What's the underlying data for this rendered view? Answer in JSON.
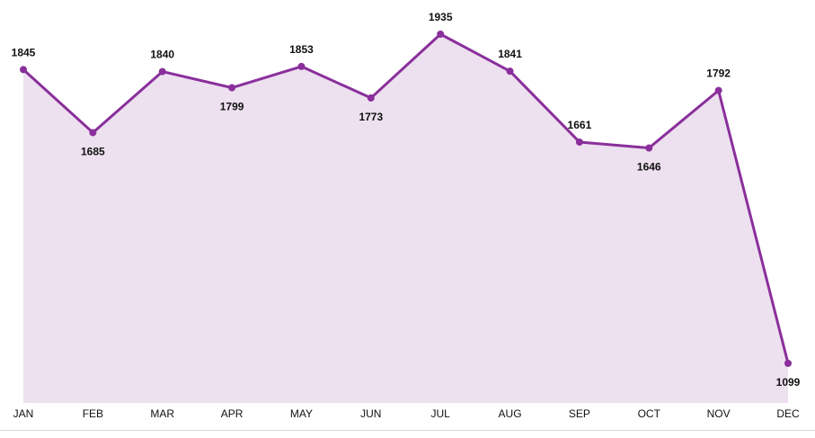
{
  "chart_data": {
    "type": "area",
    "categories": [
      "JAN",
      "FEB",
      "MAR",
      "APR",
      "MAY",
      "JUN",
      "JUL",
      "AUG",
      "SEP",
      "OCT",
      "NOV",
      "DEC"
    ],
    "series": [
      {
        "values": [
          1845,
          1685,
          1840,
          1799,
          1853,
          1773,
          1935,
          1841,
          1661,
          1646,
          1792,
          1099
        ]
      }
    ],
    "title": "",
    "xlabel": "",
    "ylabel": "",
    "ylim": [
      1050,
      1960
    ],
    "grid": false,
    "legend": "none",
    "data_labels": true,
    "colors": {
      "line": "#8a2f9b",
      "fill": "#ede0ef",
      "marker": "#8a2f9b",
      "text": "#111111",
      "baseline": "#d9d9d9"
    }
  }
}
